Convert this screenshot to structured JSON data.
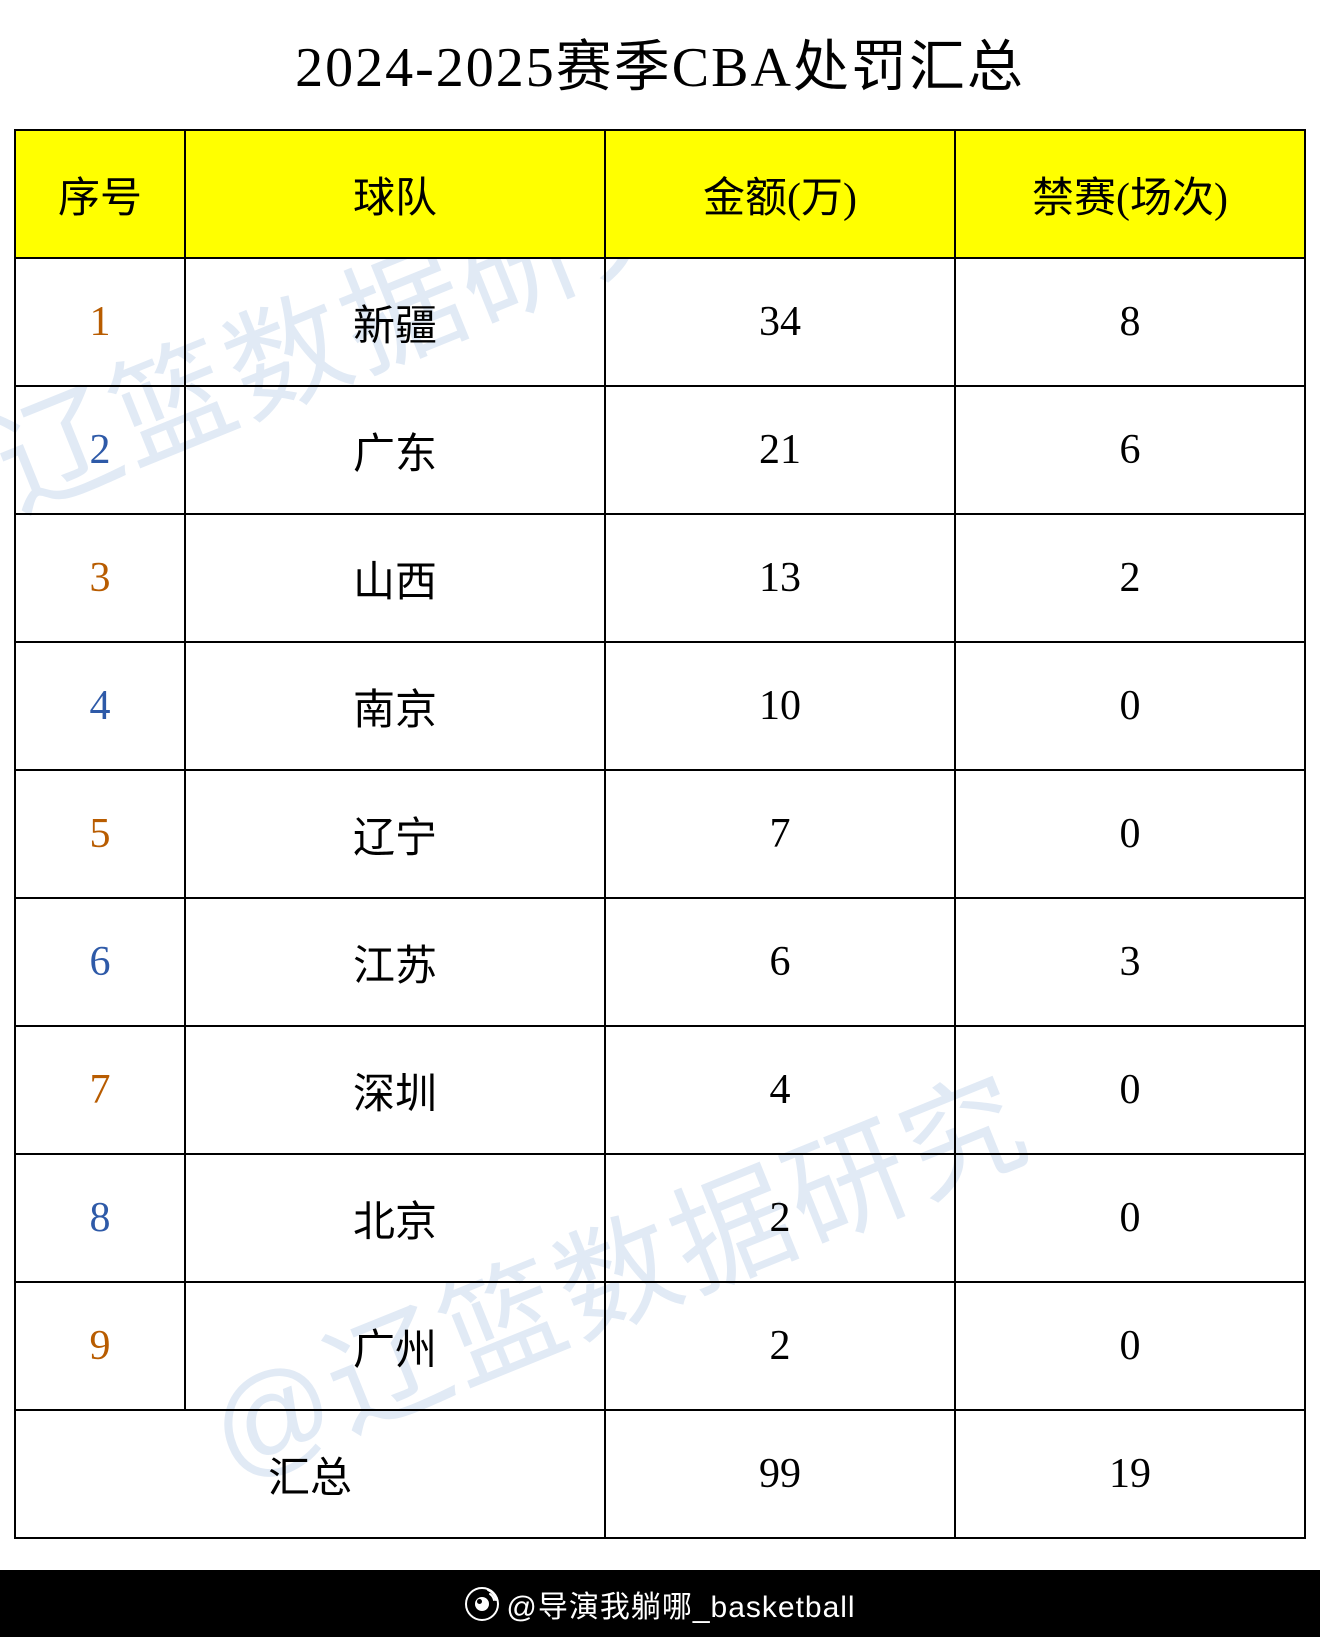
{
  "title": "2024-2025赛季CBA处罚汇总",
  "watermark_text": "@辽篮数据研究",
  "header_bg_color": "#ffff00",
  "border_color": "#000000",
  "row_num_color_odd": "#b85c00",
  "row_num_color_even": "#2e5aa8",
  "columns": {
    "index": "序号",
    "team": "球队",
    "amount": "金额(万)",
    "ban": "禁赛(场次)"
  },
  "rows": [
    {
      "idx": "1",
      "team": "新疆",
      "amount": "34",
      "ban": "8"
    },
    {
      "idx": "2",
      "team": "广东",
      "amount": "21",
      "ban": "6"
    },
    {
      "idx": "3",
      "team": "山西",
      "amount": "13",
      "ban": "2"
    },
    {
      "idx": "4",
      "team": "南京",
      "amount": "10",
      "ban": "0"
    },
    {
      "idx": "5",
      "team": "辽宁",
      "amount": "7",
      "ban": "0"
    },
    {
      "idx": "6",
      "team": "江苏",
      "amount": "6",
      "ban": "3"
    },
    {
      "idx": "7",
      "team": "深圳",
      "amount": "4",
      "ban": "0"
    },
    {
      "idx": "8",
      "team": "北京",
      "amount": "2",
      "ban": "0"
    },
    {
      "idx": "9",
      "team": "广州",
      "amount": "2",
      "ban": "0"
    }
  ],
  "summary": {
    "label": "汇总",
    "amount": "99",
    "ban": "19"
  },
  "footer": {
    "handle": "@导演我躺哪_basketball",
    "icon_color": "#ffffff"
  }
}
